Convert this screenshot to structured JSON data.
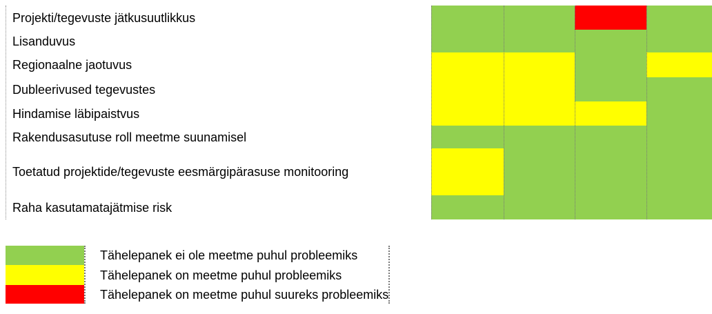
{
  "matrix": {
    "rows": [
      {
        "label": "Projekti/tegevuste jätkusuutlikkus",
        "cells": [
          "#92d050",
          "#92d050",
          "#ff0000",
          "#92d050"
        ]
      },
      {
        "label": "Lisanduvus",
        "cells": [
          "#92d050",
          "#92d050",
          "#92d050",
          "#92d050"
        ]
      },
      {
        "label": "Regionaalne jaotuvus",
        "cells": [
          "#ffff00",
          "#ffff00",
          "#92d050",
          "#ffff00"
        ]
      },
      {
        "label": "Dubleerivused tegevustes",
        "cells": [
          "#ffff00",
          "#ffff00",
          "#92d050",
          "#92d050"
        ]
      },
      {
        "label": "Hindamise läbipaistvus",
        "cells": [
          "#ffff00",
          "#ffff00",
          "#ffff00",
          "#92d050"
        ]
      },
      {
        "label": "Rakendusasutuse roll meetme suunamisel",
        "cells": [
          "#92d050",
          "#92d050",
          "#92d050",
          "#92d050"
        ]
      },
      {
        "label": "Toetatud projektide/tegevuste eesmärgipärasuse monitooring",
        "cells": [
          "#ffff00",
          "#92d050",
          "#92d050",
          "#92d050"
        ]
      },
      {
        "label": "Raha kasutamatajätmise risk",
        "cells": [
          "#92d050",
          "#92d050",
          "#92d050",
          "#92d050"
        ]
      }
    ]
  },
  "legend": [
    {
      "color": "#92d050",
      "label": "Tähelepanek ei ole meetme puhul probleemiks"
    },
    {
      "color": "#ffff00",
      "label": "Tähelepanek on meetme puhul probleemiks"
    },
    {
      "color": "#ff0000",
      "label": "Tähelepanek on meetme puhul suureks probleemiks"
    }
  ]
}
